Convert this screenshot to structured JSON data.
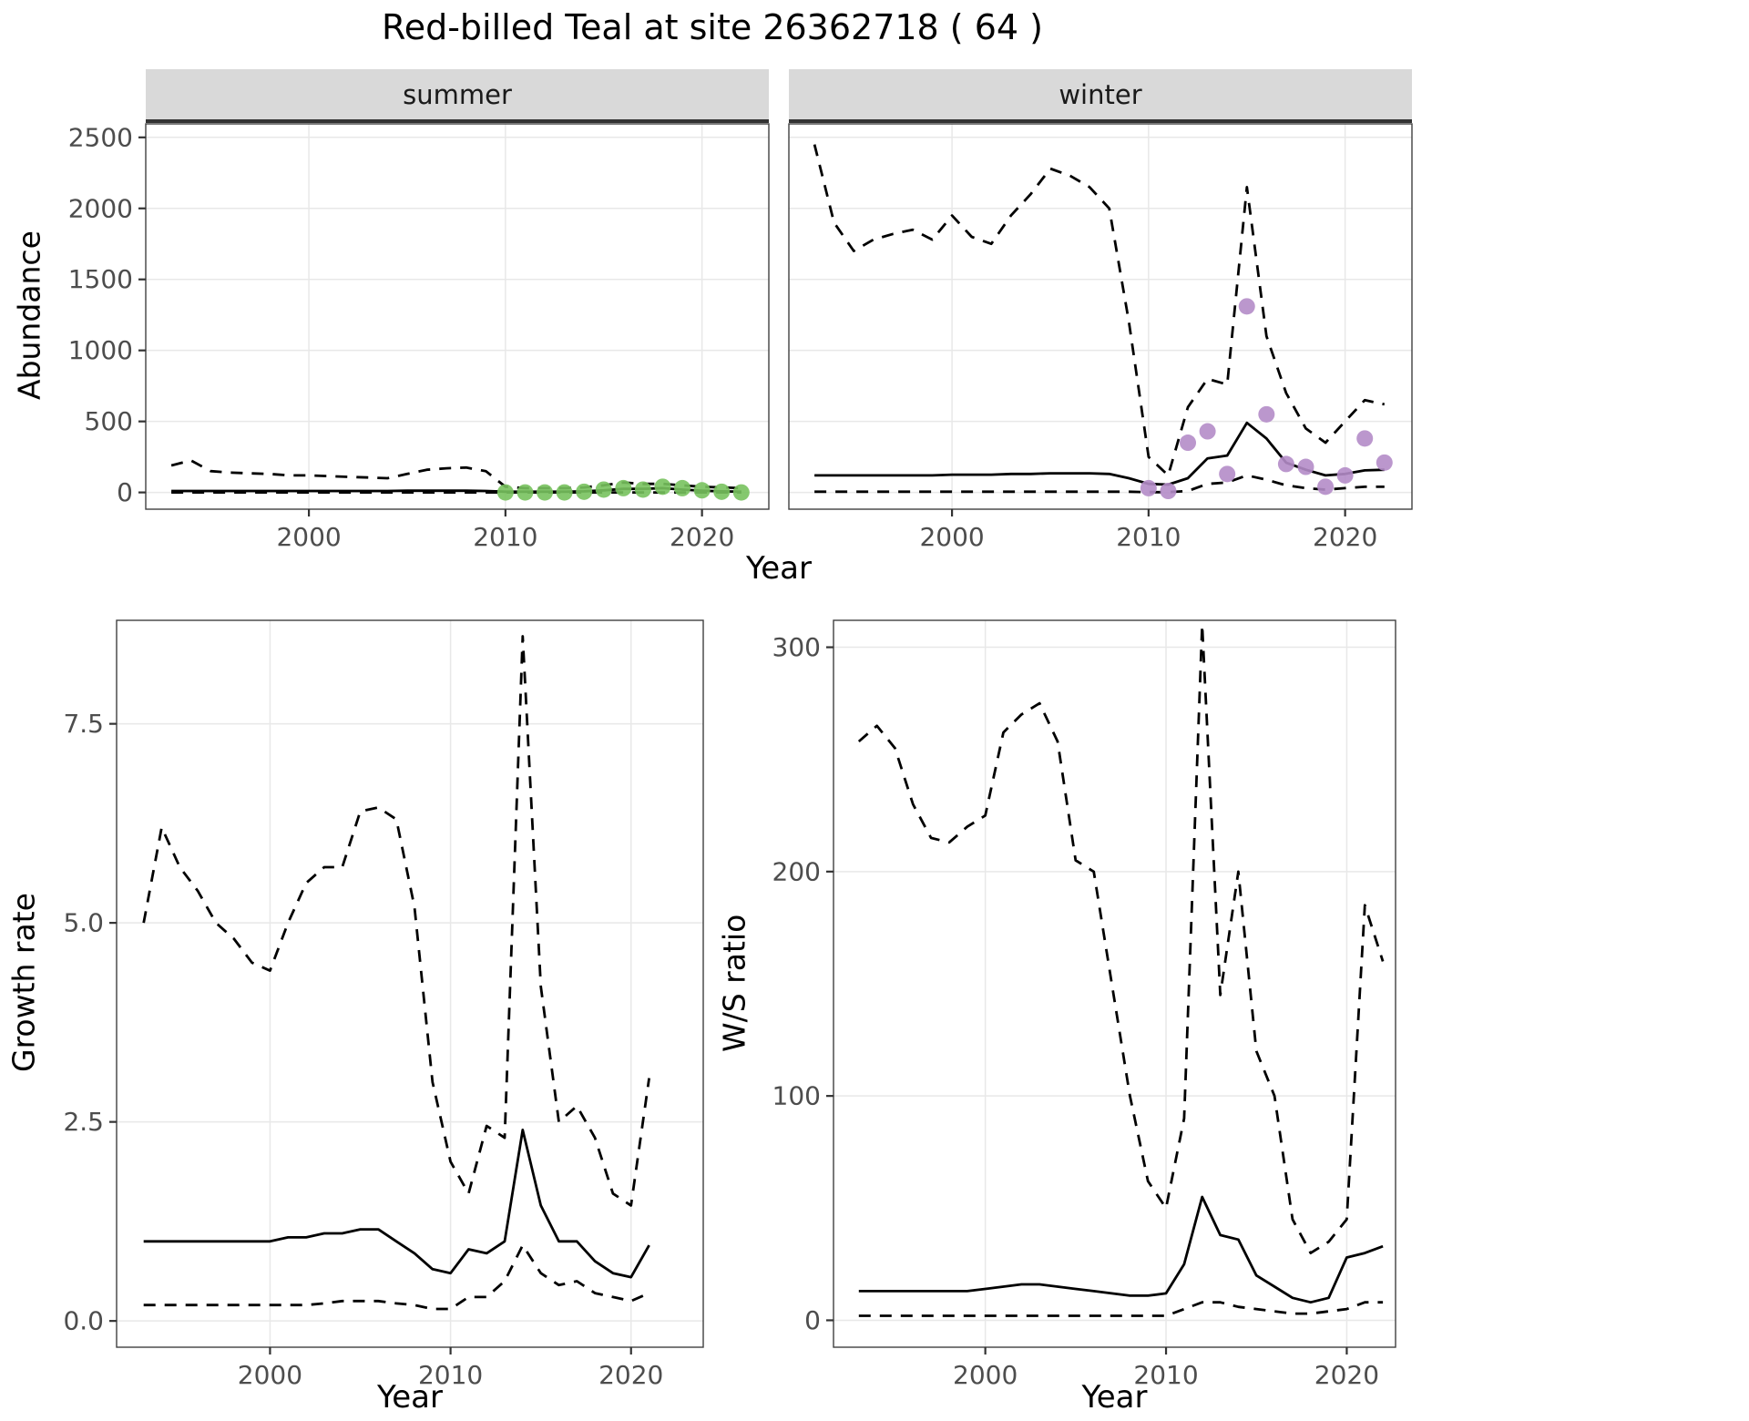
{
  "title": "Red-billed Teal at site 26362718 ( 64 )",
  "facets": {
    "summer": "summer",
    "winter": "winter"
  },
  "axis_titles": {
    "abundance": "Abundance",
    "year_top": "Year",
    "growth_rate": "Growth rate",
    "ws_ratio": "W/S ratio",
    "year_bottom_left": "Year",
    "year_bottom_right": "Year"
  },
  "colors": {
    "summer_points": "#78c25e",
    "winter_points": "#b48cc8",
    "line": "#000000",
    "strip_bg": "#d9d9d9",
    "grid": "#e8e8e8",
    "panel_border": "#404040",
    "tick_label": "#4d4d4d"
  },
  "chart_data": [
    {
      "id": "abundance-summer",
      "type": "line",
      "facet_label": "summer",
      "title": "",
      "xlabel": "Year",
      "ylabel": "Abundance",
      "xlim": [
        1991.7,
        2023.4
      ],
      "ylim": [
        -118,
        2595
      ],
      "xticks": [
        2000,
        2010,
        2020
      ],
      "xtick_labels": [
        "2000",
        "2010",
        "2020"
      ],
      "yticks": [
        0,
        500,
        1000,
        1500,
        2000,
        2500
      ],
      "ytick_labels": [
        "0",
        "500",
        "1000",
        "1500",
        "2000",
        "2500"
      ],
      "grid": true,
      "legend": "none",
      "x": [
        1993,
        1994,
        1995,
        1996,
        1997,
        1998,
        1999,
        2000,
        2001,
        2002,
        2003,
        2004,
        2005,
        2006,
        2007,
        2008,
        2009,
        2010,
        2011,
        2012,
        2013,
        2014,
        2015,
        2016,
        2017,
        2018,
        2019,
        2020,
        2021,
        2022
      ],
      "series": [
        {
          "name": "upper-ci",
          "style": "dashed",
          "values": [
            190,
            225,
            150,
            140,
            135,
            130,
            120,
            120,
            115,
            110,
            105,
            100,
            130,
            160,
            170,
            175,
            150,
            40,
            30,
            30,
            30,
            35,
            50,
            70,
            60,
            60,
            50,
            40,
            35,
            30
          ]
        },
        {
          "name": "estimate",
          "style": "solid",
          "values": [
            10,
            10,
            10,
            10,
            10,
            10,
            10,
            10,
            10,
            10,
            10,
            10,
            12,
            12,
            12,
            12,
            10,
            5,
            5,
            5,
            5,
            8,
            15,
            25,
            25,
            30,
            20,
            12,
            8,
            5
          ]
        },
        {
          "name": "lower-ci",
          "style": "dashed",
          "values": [
            0,
            0,
            0,
            0,
            0,
            0,
            0,
            0,
            0,
            0,
            0,
            0,
            0,
            0,
            0,
            0,
            0,
            0,
            0,
            0,
            0,
            0,
            0,
            0,
            0,
            0,
            0,
            0,
            0,
            0
          ]
        },
        {
          "name": "observed-counts",
          "style": "points",
          "color": "#78c25e",
          "x": [
            2010,
            2011,
            2012,
            2013,
            2014,
            2015,
            2016,
            2017,
            2018,
            2019,
            2020,
            2021,
            2022
          ],
          "values": [
            0,
            0,
            0,
            0,
            5,
            20,
            30,
            20,
            40,
            30,
            15,
            5,
            0
          ]
        }
      ]
    },
    {
      "id": "abundance-winter",
      "type": "line",
      "facet_label": "winter",
      "title": "",
      "xlabel": "Year",
      "ylabel": "Abundance",
      "xlim": [
        1991.7,
        2023.4
      ],
      "ylim": [
        -118,
        2595
      ],
      "xticks": [
        2000,
        2010,
        2020
      ],
      "xtick_labels": [
        "2000",
        "2010",
        "2020"
      ],
      "yticks": [
        0,
        500,
        1000,
        1500,
        2000,
        2500
      ],
      "ytick_labels": [
        "0",
        "500",
        "1000",
        "1500",
        "2000",
        "2500"
      ],
      "grid": true,
      "legend": "none",
      "x": [
        1993,
        1994,
        1995,
        1996,
        1997,
        1998,
        1999,
        2000,
        2001,
        2002,
        2003,
        2004,
        2005,
        2006,
        2007,
        2008,
        2009,
        2010,
        2011,
        2012,
        2013,
        2014,
        2015,
        2016,
        2017,
        2018,
        2019,
        2020,
        2021,
        2022
      ],
      "series": [
        {
          "name": "upper-ci",
          "style": "dashed",
          "values": [
            2450,
            1900,
            1700,
            1780,
            1820,
            1850,
            1780,
            1950,
            1800,
            1750,
            1950,
            2100,
            2280,
            2230,
            2150,
            2000,
            1200,
            250,
            120,
            600,
            800,
            760,
            2150,
            1100,
            700,
            450,
            350,
            500,
            650,
            620
          ]
        },
        {
          "name": "estimate",
          "style": "solid",
          "values": [
            120,
            120,
            120,
            120,
            120,
            120,
            120,
            125,
            125,
            125,
            130,
            130,
            135,
            135,
            135,
            130,
            100,
            60,
            55,
            100,
            240,
            260,
            490,
            380,
            210,
            160,
            120,
            130,
            155,
            160
          ]
        },
        {
          "name": "lower-ci",
          "style": "dashed",
          "values": [
            5,
            5,
            5,
            5,
            5,
            5,
            5,
            5,
            5,
            5,
            5,
            5,
            5,
            5,
            5,
            5,
            5,
            2,
            2,
            10,
            60,
            70,
            120,
            90,
            50,
            30,
            20,
            30,
            40,
            40
          ]
        },
        {
          "name": "observed-counts",
          "style": "points",
          "color": "#b48cc8",
          "x": [
            2010,
            2011,
            2012,
            2013,
            2014,
            2015,
            2016,
            2017,
            2018,
            2019,
            2020,
            2021,
            2022
          ],
          "values": [
            30,
            10,
            350,
            430,
            130,
            1310,
            550,
            200,
            180,
            40,
            120,
            380,
            210
          ]
        }
      ]
    },
    {
      "id": "growth-rate",
      "type": "line",
      "facet_label": "",
      "title": "",
      "xlabel": "Year",
      "ylabel": "Growth rate",
      "xlim": [
        1991.5,
        2024.0
      ],
      "ylim": [
        -0.33,
        8.8
      ],
      "xticks": [
        2000,
        2010,
        2020
      ],
      "xtick_labels": [
        "2000",
        "2010",
        "2020"
      ],
      "yticks": [
        0,
        2.5,
        5,
        7.5
      ],
      "ytick_labels": [
        "0.0",
        "2.5",
        "5.0",
        "7.5"
      ],
      "grid": true,
      "legend": "none",
      "x": [
        1993,
        1994,
        1995,
        1996,
        1997,
        1998,
        1999,
        2000,
        2001,
        2002,
        2003,
        2004,
        2005,
        2006,
        2007,
        2008,
        2009,
        2010,
        2011,
        2012,
        2013,
        2014,
        2015,
        2016,
        2017,
        2018,
        2019,
        2020,
        2021
      ],
      "series": [
        {
          "name": "upper-ci",
          "style": "dashed",
          "values": [
            5.0,
            6.2,
            5.7,
            5.4,
            5.0,
            4.8,
            4.5,
            4.4,
            5.0,
            5.5,
            5.7,
            5.7,
            6.4,
            6.45,
            6.3,
            5.2,
            3.0,
            2.0,
            1.6,
            2.45,
            2.3,
            8.6,
            4.2,
            2.5,
            2.7,
            2.3,
            1.6,
            1.45,
            3.05
          ]
        },
        {
          "name": "estimate",
          "style": "solid",
          "values": [
            1.0,
            1.0,
            1.0,
            1.0,
            1.0,
            1.0,
            1.0,
            1.0,
            1.05,
            1.05,
            1.1,
            1.1,
            1.15,
            1.15,
            1.0,
            0.85,
            0.65,
            0.6,
            0.9,
            0.85,
            1.0,
            2.4,
            1.45,
            1.0,
            1.0,
            0.75,
            0.6,
            0.55,
            0.95
          ]
        },
        {
          "name": "lower-ci",
          "style": "dashed",
          "values": [
            0.2,
            0.2,
            0.2,
            0.2,
            0.2,
            0.2,
            0.2,
            0.2,
            0.2,
            0.2,
            0.22,
            0.25,
            0.25,
            0.25,
            0.22,
            0.2,
            0.15,
            0.15,
            0.3,
            0.3,
            0.5,
            0.95,
            0.6,
            0.45,
            0.5,
            0.35,
            0.3,
            0.25,
            0.35
          ]
        }
      ]
    },
    {
      "id": "ws-ratio",
      "type": "line",
      "facet_label": "",
      "title": "",
      "xlabel": "Year",
      "ylabel": "W/S ratio",
      "xlim": [
        1991.6,
        2022.7
      ],
      "ylim": [
        -12,
        312
      ],
      "xticks": [
        2000,
        2010,
        2020
      ],
      "xtick_labels": [
        "2000",
        "2010",
        "2020"
      ],
      "yticks": [
        0,
        100,
        200,
        300
      ],
      "ytick_labels": [
        "0",
        "100",
        "200",
        "300"
      ],
      "grid": true,
      "legend": "none",
      "x": [
        1993,
        1994,
        1995,
        1996,
        1997,
        1998,
        1999,
        2000,
        2001,
        2002,
        2003,
        2004,
        2005,
        2006,
        2007,
        2008,
        2009,
        2010,
        2011,
        2012,
        2013,
        2014,
        2015,
        2016,
        2017,
        2018,
        2019,
        2020,
        2021,
        2022
      ],
      "series": [
        {
          "name": "upper-ci",
          "style": "dashed",
          "values": [
            258,
            265,
            255,
            230,
            215,
            213,
            220,
            225,
            262,
            270,
            275,
            258,
            205,
            200,
            150,
            100,
            62,
            50,
            90,
            310,
            145,
            200,
            120,
            100,
            45,
            30,
            35,
            45,
            185,
            160
          ]
        },
        {
          "name": "estimate",
          "style": "solid",
          "values": [
            13,
            13,
            13,
            13,
            13,
            13,
            13,
            14,
            15,
            16,
            16,
            15,
            14,
            13,
            12,
            11,
            11,
            12,
            25,
            55,
            38,
            36,
            20,
            15,
            10,
            8,
            10,
            28,
            30,
            33
          ]
        },
        {
          "name": "lower-ci",
          "style": "dashed",
          "values": [
            2,
            2,
            2,
            2,
            2,
            2,
            2,
            2,
            2,
            2,
            2,
            2,
            2,
            2,
            2,
            2,
            2,
            2,
            5,
            8,
            8,
            6,
            5,
            4,
            3,
            3,
            4,
            5,
            8,
            8
          ]
        }
      ]
    }
  ]
}
